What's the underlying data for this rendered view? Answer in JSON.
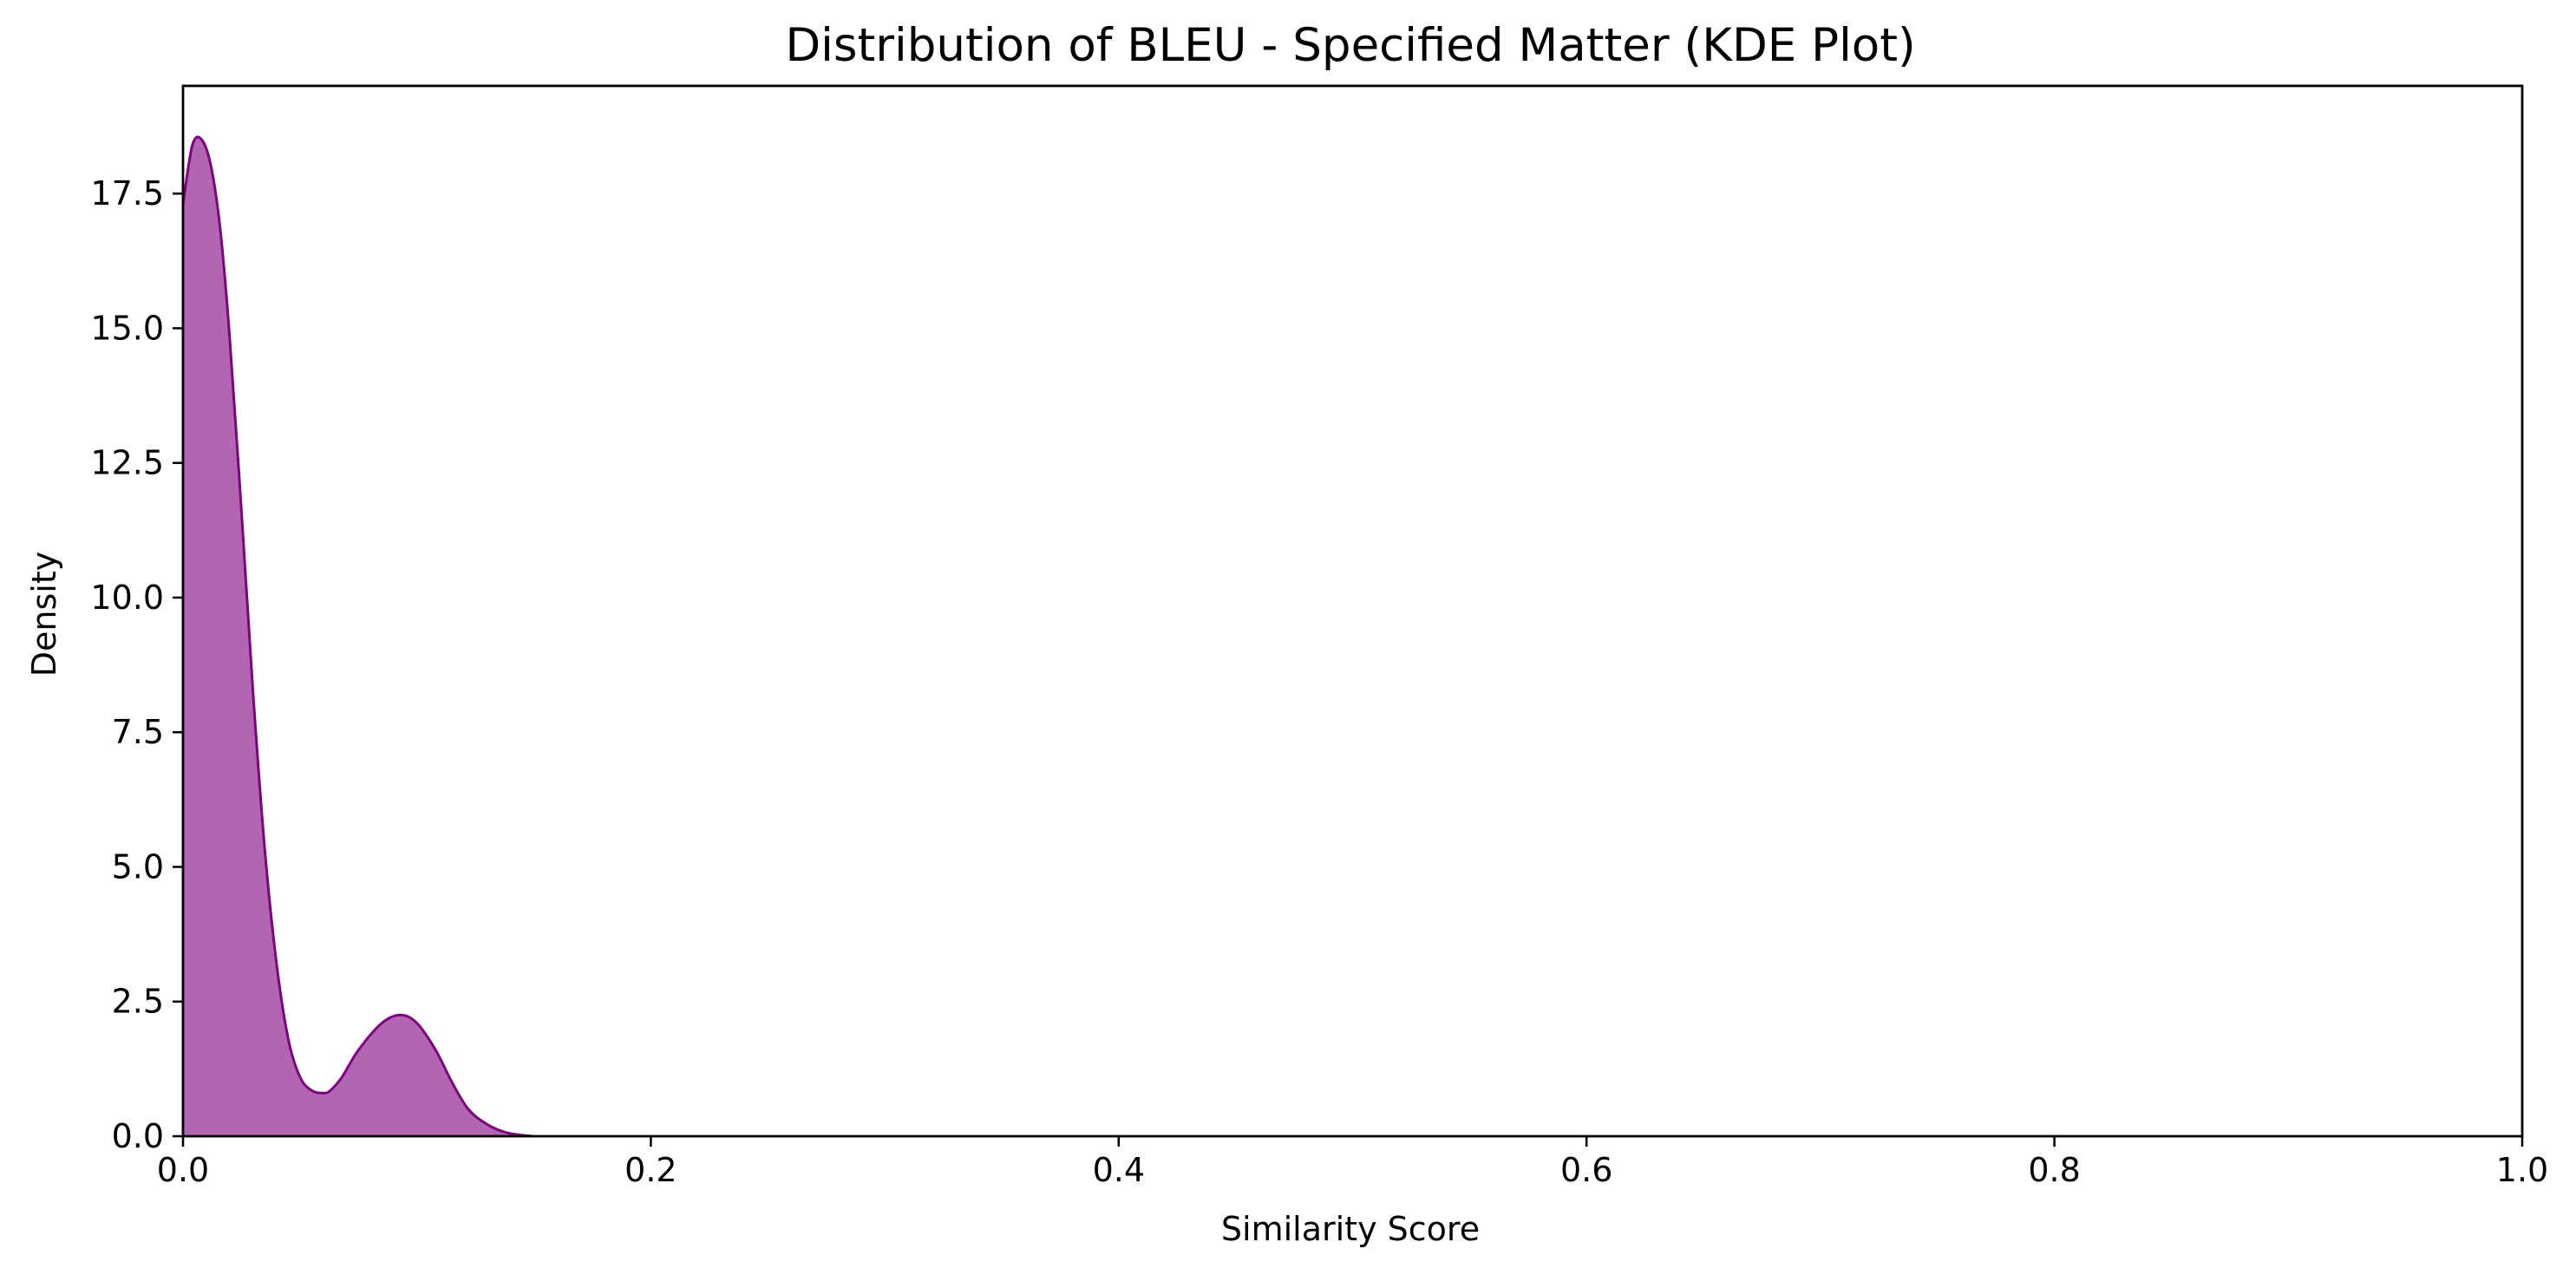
{
  "chart_data": {
    "type": "area",
    "title": "Distribution of BLEU - Specified Matter (KDE Plot)",
    "xlabel": "Similarity Score",
    "ylabel": "Density",
    "xlim": [
      0.0,
      1.0
    ],
    "ylim": [
      0.0,
      19.5
    ],
    "x_ticks": [
      0.0,
      0.2,
      0.4,
      0.6,
      0.8,
      1.0
    ],
    "x_tick_labels": [
      "0.0",
      "0.2",
      "0.4",
      "0.6",
      "0.8",
      "1.0"
    ],
    "y_ticks": [
      0.0,
      2.5,
      5.0,
      7.5,
      10.0,
      12.5,
      15.0,
      17.5
    ],
    "y_tick_labels": [
      "0.0",
      "2.5",
      "5.0",
      "7.5",
      "10.0",
      "12.5",
      "15.0",
      "17.5"
    ],
    "grid": false,
    "legend": "none",
    "series": [
      {
        "color": "#800080",
        "fill_color": "#b266b2",
        "x": [
          0.0,
          0.004,
          0.008,
          0.012,
          0.016,
          0.02,
          0.025,
          0.03,
          0.035,
          0.04,
          0.045,
          0.05,
          0.055,
          0.06,
          0.063,
          0.068,
          0.075,
          0.085,
          0.093,
          0.1,
          0.108,
          0.115,
          0.122,
          0.13,
          0.138,
          0.145,
          0.15
        ],
        "y": [
          17.3,
          18.4,
          18.5,
          18.0,
          16.8,
          14.8,
          11.6,
          8.2,
          5.3,
          3.2,
          1.8,
          1.1,
          0.85,
          0.8,
          0.85,
          1.1,
          1.6,
          2.1,
          2.25,
          2.1,
          1.6,
          1.0,
          0.5,
          0.22,
          0.07,
          0.02,
          0.0
        ]
      }
    ]
  }
}
